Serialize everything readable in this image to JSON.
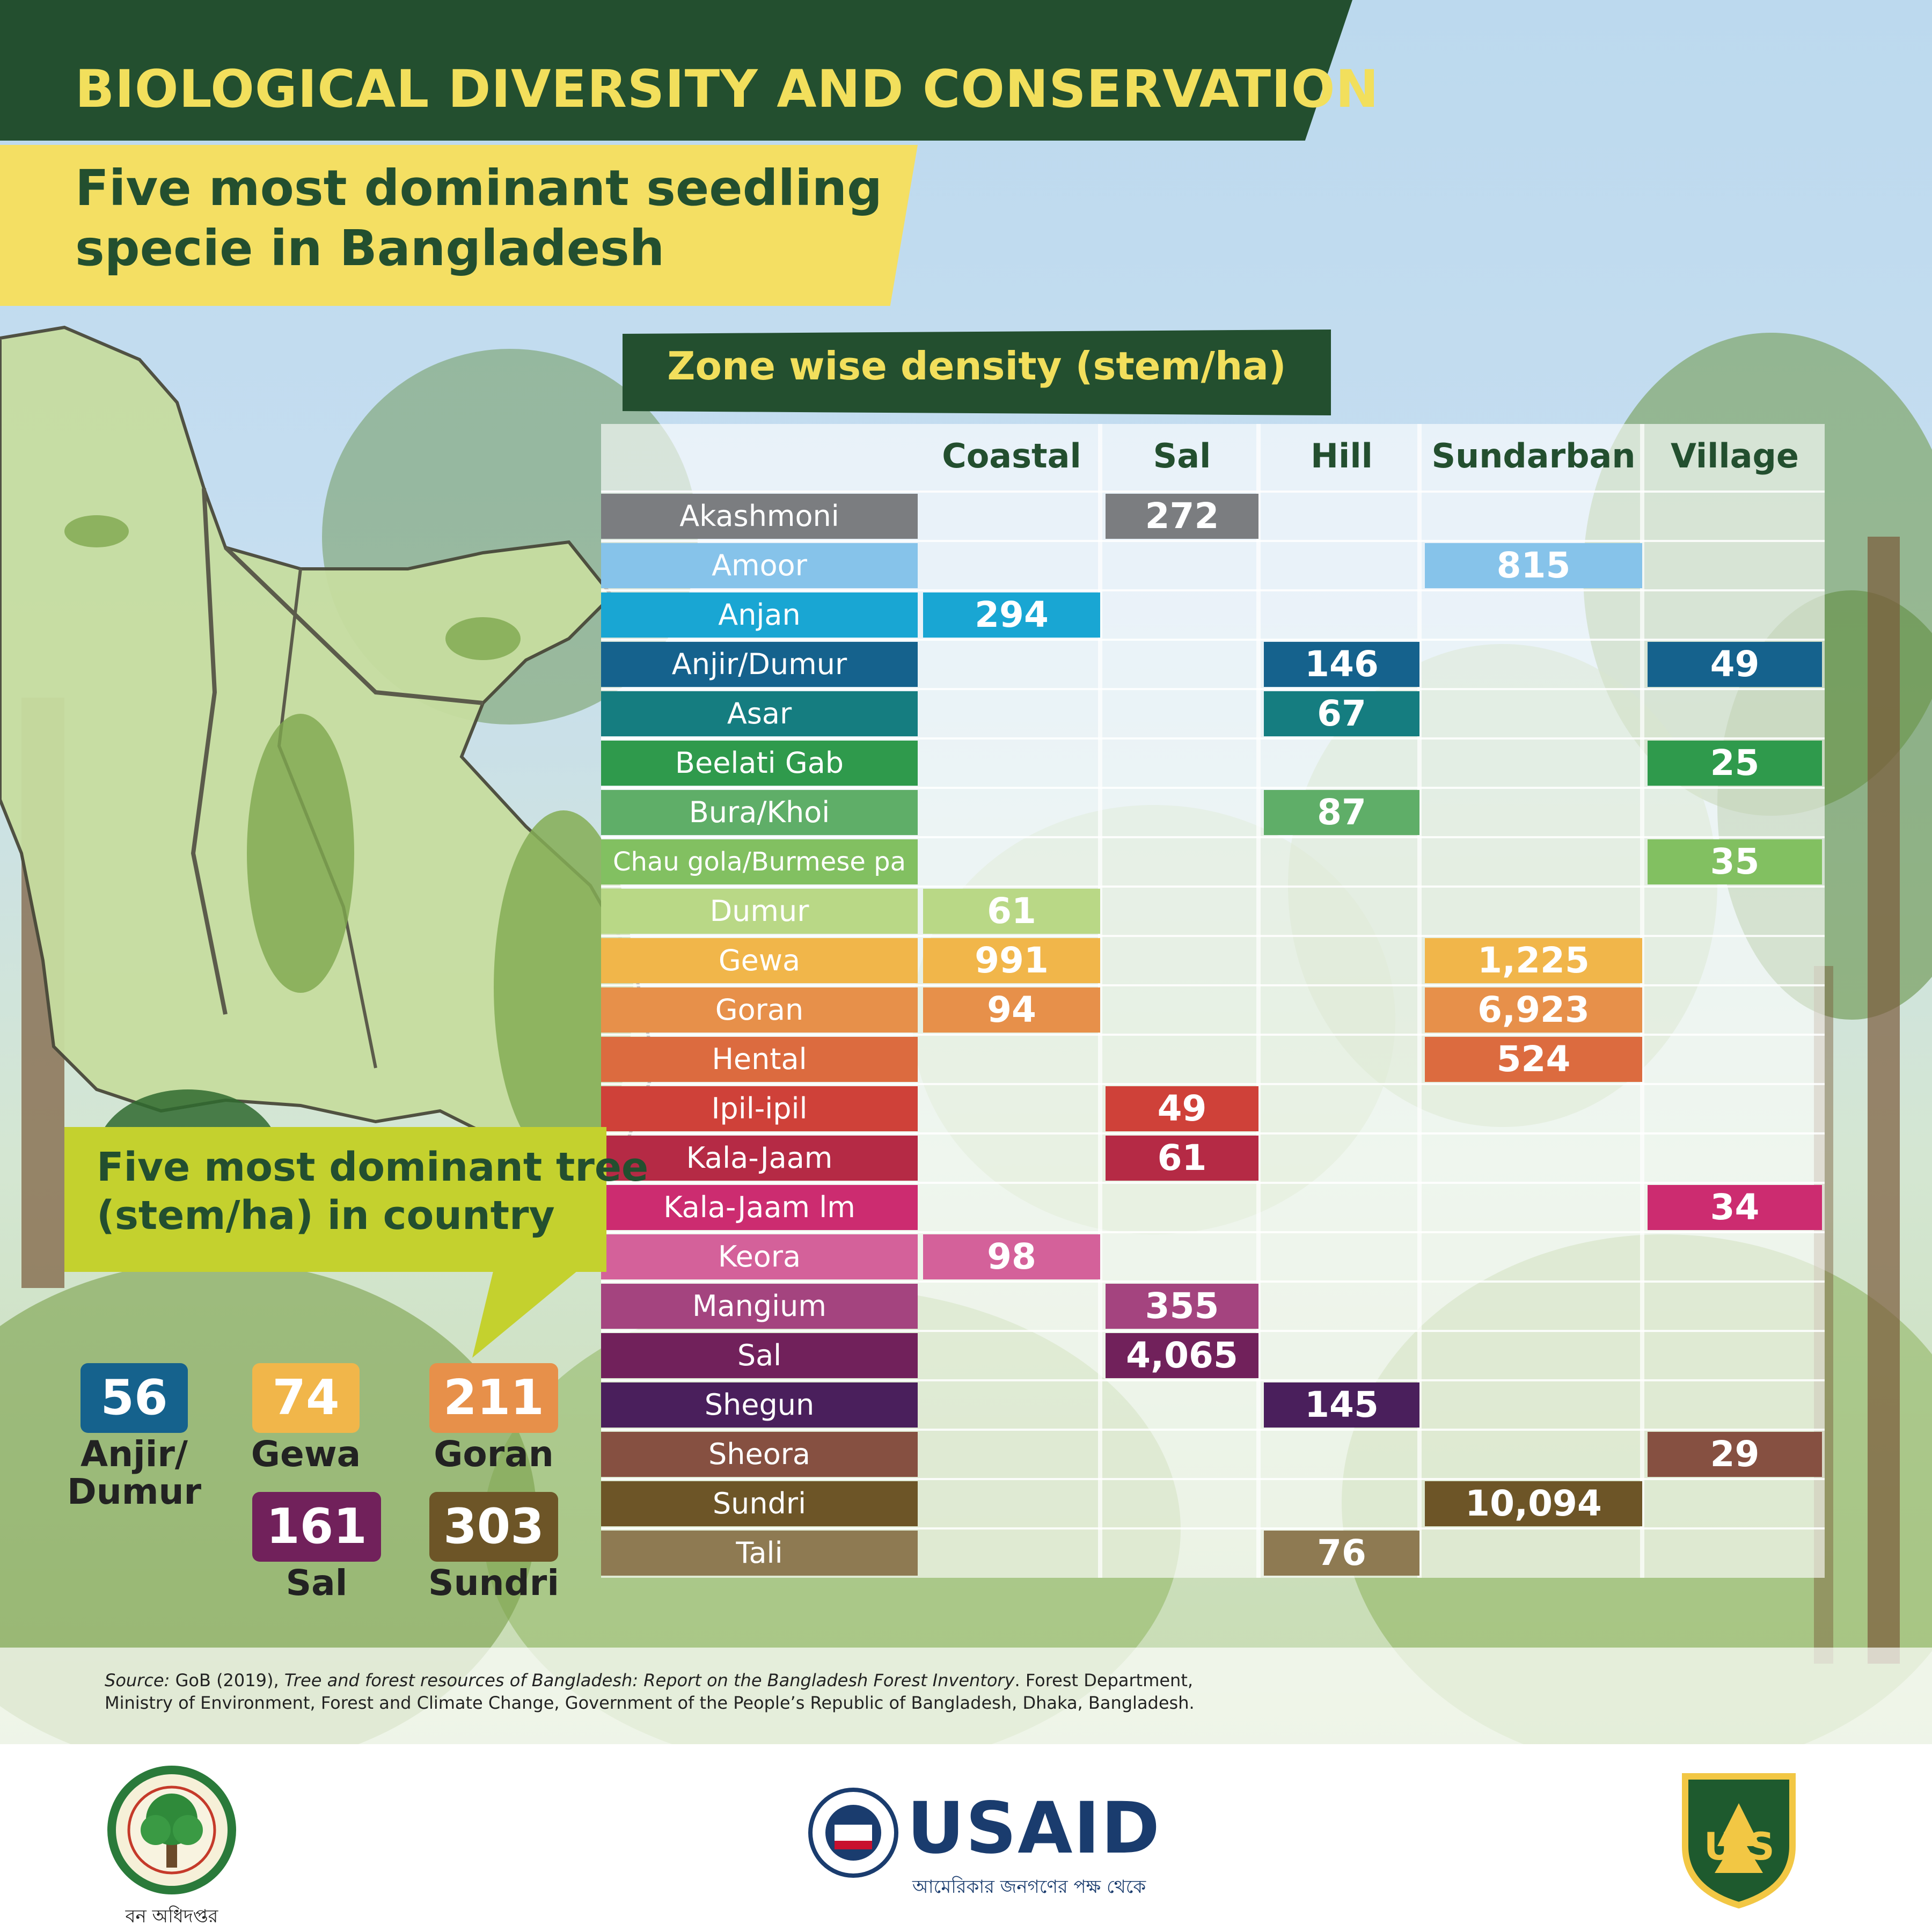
{
  "header": {
    "title": "BIOLOGICAL DIVERSITY AND CONSERVATION",
    "subtitle_line1": "Five most dominant seedling",
    "subtitle_line2": "specie in Bangladesh"
  },
  "chart_data": [
    {
      "type": "table",
      "title": "Zone wise density (stem/ha)",
      "columns": [
        "Coastal",
        "Sal",
        "Hill",
        "Sundarban",
        "Village"
      ],
      "rows": [
        {
          "name": "Akashmoni",
          "color": "#7b7d80",
          "values": [
            null,
            "272",
            null,
            null,
            null
          ]
        },
        {
          "name": "Amoor",
          "color": "#86c3ea",
          "values": [
            null,
            null,
            null,
            "815",
            null
          ]
        },
        {
          "name": "Anjan",
          "color": "#19a6d3",
          "values": [
            "294",
            null,
            null,
            null,
            null
          ]
        },
        {
          "name": "Anjir/Dumur",
          "color": "#15628d",
          "values": [
            null,
            null,
            "146",
            null,
            "49"
          ]
        },
        {
          "name": "Asar",
          "color": "#157d80",
          "values": [
            null,
            null,
            "67",
            null,
            null
          ]
        },
        {
          "name": "Beelati Gab",
          "color": "#2f9a4c",
          "values": [
            null,
            null,
            null,
            null,
            "25"
          ]
        },
        {
          "name": "Bura/Khoi",
          "color": "#5fae68",
          "values": [
            null,
            null,
            "87",
            null,
            null
          ]
        },
        {
          "name": "Chau gola/Burmese pa",
          "color": "#82c061",
          "values": [
            null,
            null,
            null,
            null,
            "35"
          ]
        },
        {
          "name": "Dumur",
          "color": "#b9d886",
          "values": [
            "61",
            null,
            null,
            null,
            null
          ]
        },
        {
          "name": "Gewa",
          "color": "#f1b64a",
          "values": [
            "991",
            null,
            null,
            "1,225",
            null
          ]
        },
        {
          "name": "Goran",
          "color": "#e7904a",
          "values": [
            "94",
            null,
            null,
            "6,923",
            null
          ]
        },
        {
          "name": "Hental",
          "color": "#dc6b3f",
          "values": [
            null,
            null,
            null,
            "524",
            null
          ]
        },
        {
          "name": "Ipil-ipil",
          "color": "#cf4139",
          "values": [
            null,
            "49",
            null,
            null,
            null
          ]
        },
        {
          "name": "Kala-Jaam",
          "color": "#b52a45",
          "values": [
            null,
            "61",
            null,
            null,
            null
          ]
        },
        {
          "name": "Kala-Jaam lm",
          "color": "#cc2c70",
          "values": [
            null,
            null,
            null,
            null,
            "34"
          ]
        },
        {
          "name": "Keora",
          "color": "#d4619a",
          "values": [
            "98",
            null,
            null,
            null,
            null
          ]
        },
        {
          "name": "Mangium",
          "color": "#a4447f",
          "values": [
            null,
            "355",
            null,
            null,
            null
          ]
        },
        {
          "name": "Sal",
          "color": "#71215b",
          "values": [
            null,
            "4,065",
            null,
            null,
            null
          ]
        },
        {
          "name": "Shegun",
          "color": "#4a1f5c",
          "values": [
            null,
            null,
            "145",
            null,
            null
          ]
        },
        {
          "name": "Sheora",
          "color": "#865041",
          "values": [
            null,
            null,
            null,
            null,
            "29"
          ]
        },
        {
          "name": "Sundri",
          "color": "#6d5527",
          "values": [
            null,
            null,
            null,
            "10,094",
            null
          ]
        },
        {
          "name": "Tali",
          "color": "#8e7a52",
          "values": [
            null,
            null,
            "76",
            null,
            null
          ]
        }
      ]
    },
    {
      "type": "table",
      "title_line1": "Five most dominant tree",
      "title_line2": "(stem/ha) in country",
      "items": [
        {
          "name_line1": "Anjir/",
          "name_line2": "Dumur",
          "value": "56",
          "color": "#15628d"
        },
        {
          "name_line1": "Gewa",
          "name_line2": "",
          "value": "74",
          "color": "#f1b64a"
        },
        {
          "name_line1": "Goran",
          "name_line2": "",
          "value": "211",
          "color": "#e7904a"
        },
        {
          "name_line1": "Sal",
          "name_line2": "",
          "value": "161",
          "color": "#71215b"
        },
        {
          "name_line1": "Sundri",
          "name_line2": "",
          "value": "303",
          "color": "#6d5527"
        }
      ]
    }
  ],
  "source": {
    "label": "Source:",
    "text1": " GoB (2019), ",
    "title": "Tree and forest resources of Bangladesh: Report on the Bangladesh Forest Inventory",
    "text2": ". Forest Department,",
    "line2": "Ministry of Environment, Forest and Climate Change, Government of the People’s Republic of Bangladesh, Dhaka, Bangladesh."
  },
  "footer": {
    "usaid": "USAID",
    "usaid_tagline": "আমেরিকার জনগণের পক্ষ থেকে",
    "forest_dept_caption": "বন অধিদপ্তর",
    "us_forest_service_initials": "U S"
  }
}
